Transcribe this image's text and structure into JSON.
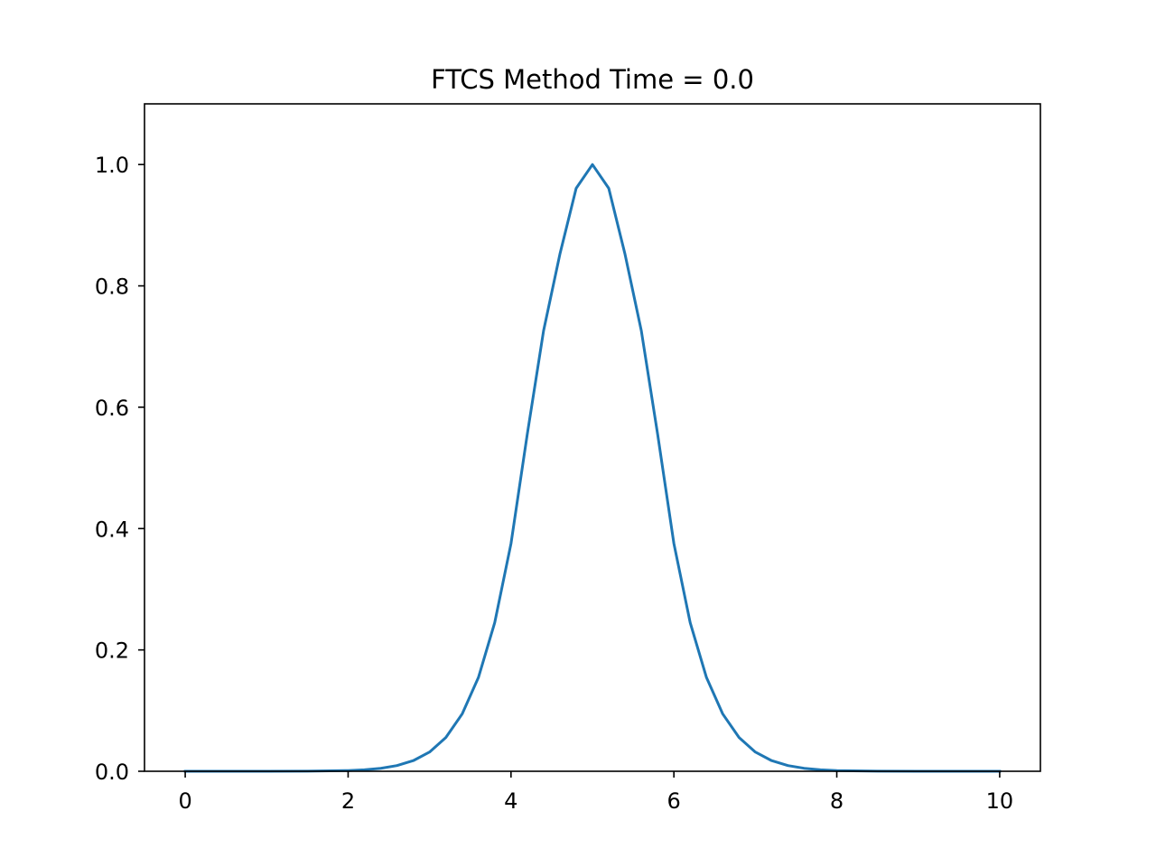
{
  "chart_data": {
    "type": "line",
    "title": "FTCS Method Time = 0.0",
    "xlabel": "",
    "ylabel": "",
    "xlim": [
      -0.5,
      10.5
    ],
    "ylim": [
      0.0,
      1.1
    ],
    "xticks": [
      0,
      2,
      4,
      6,
      8,
      10
    ],
    "xtick_labels": [
      "0",
      "2",
      "4",
      "6",
      "8",
      "10"
    ],
    "yticks": [
      0.0,
      0.2,
      0.4,
      0.6,
      0.8,
      1.0
    ],
    "ytick_labels": [
      "0.0",
      "0.2",
      "0.4",
      "0.6",
      "0.8",
      "1.0"
    ],
    "grid": false,
    "legend": false,
    "series": [
      {
        "color": "#1f77b4",
        "x": [
          0.0,
          0.5,
          1.0,
          1.5,
          2.0,
          2.2,
          2.4,
          2.6,
          2.8,
          3.0,
          3.2,
          3.4,
          3.6,
          3.8,
          4.0,
          4.2,
          4.4,
          4.6,
          4.8,
          5.0,
          5.2,
          5.4,
          5.6,
          5.8,
          6.0,
          6.2,
          6.4,
          6.6,
          6.8,
          7.0,
          7.2,
          7.4,
          7.6,
          7.8,
          8.0,
          8.5,
          9.0,
          9.5,
          10.0
        ],
        "y": [
          0.0,
          0.0,
          0.0,
          0.0002,
          0.0012,
          0.0025,
          0.0049,
          0.0094,
          0.0175,
          0.0317,
          0.0556,
          0.0944,
          0.1546,
          0.2449,
          0.3753,
          0.5557,
          0.7261,
          0.8521,
          0.9608,
          1.0,
          0.9608,
          0.8521,
          0.7261,
          0.5557,
          0.3753,
          0.2449,
          0.1546,
          0.0944,
          0.0556,
          0.0317,
          0.0175,
          0.0094,
          0.0049,
          0.0025,
          0.0012,
          0.0002,
          0.0,
          0.0,
          0.0
        ]
      }
    ]
  }
}
